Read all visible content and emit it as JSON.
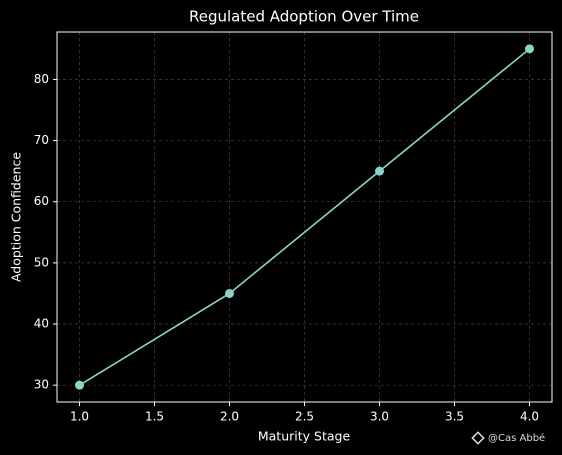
{
  "chart_data": {
    "type": "line",
    "title": "Regulated Adoption Over Time",
    "x_label": "Maturity Stage",
    "y_label": "Adoption Confidence",
    "x": [
      1,
      2,
      3,
      4
    ],
    "series": [
      {
        "name": "Adoption Confidence",
        "color": "#8dd3c7",
        "values": [
          30,
          45,
          65,
          85
        ]
      }
    ],
    "xlim": [
      0.85,
      4.15
    ],
    "xticks": [
      {
        "value": 1,
        "label": "1.0"
      },
      {
        "value": 1.5,
        "label": "1.5"
      },
      {
        "value": 2,
        "label": "2.0"
      },
      {
        "value": 2.5,
        "label": "2.5"
      },
      {
        "value": 3,
        "label": "3.0"
      },
      {
        "value": 3.5,
        "label": "3.5"
      },
      {
        "value": 4,
        "label": "4.0"
      }
    ],
    "ylim": [
      27.25,
      87.75
    ],
    "yticks": [
      30,
      40,
      50,
      60,
      70,
      80
    ],
    "grid": true,
    "watermark": "@Cas Abbé"
  }
}
